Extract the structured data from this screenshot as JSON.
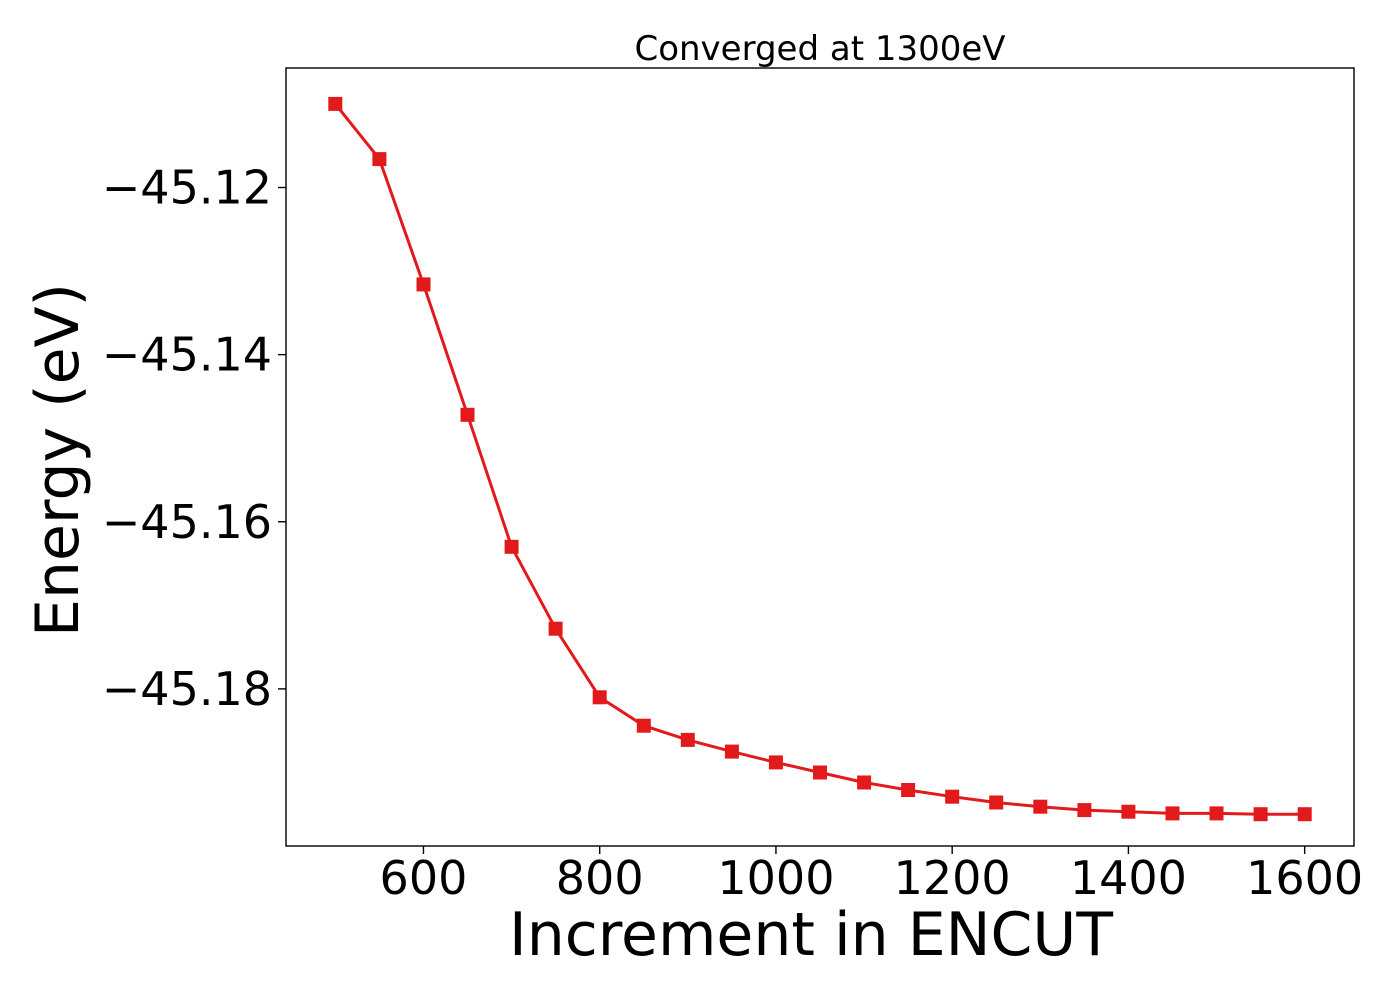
{
  "chart_data": {
    "type": "line",
    "title": "Converged at 1300eV",
    "xlabel": "Increment in ENCUT",
    "ylabel": "Energy (eV)",
    "xlim": [
      444,
      1656
    ],
    "ylim": [
      -45.1988,
      -45.1057
    ],
    "xticks": [
      600,
      800,
      1000,
      1200,
      1400,
      1600
    ],
    "yticks": [
      -45.12,
      -45.14,
      -45.16,
      -45.18
    ],
    "ytick_labels": [
      "−45.12",
      "−45.14",
      "−45.16",
      "−45.18"
    ],
    "grid": false,
    "series": [
      {
        "color": "#e31a1c",
        "marker": "square",
        "x": [
          500,
          550,
          600,
          650,
          700,
          750,
          800,
          850,
          900,
          950,
          1000,
          1050,
          1100,
          1150,
          1200,
          1250,
          1300,
          1350,
          1400,
          1450,
          1500,
          1550,
          1600
        ],
        "y": [
          -45.11,
          -45.1166,
          -45.1316,
          -45.1472,
          -45.163,
          -45.1728,
          -45.181,
          -45.1844,
          -45.1861,
          -45.1875,
          -45.1888,
          -45.19,
          -45.1912,
          -45.1921,
          -45.1929,
          -45.1936,
          -45.1941,
          -45.1945,
          -45.1947,
          -45.1949,
          -45.1949,
          -45.195,
          -45.195
        ]
      }
    ]
  }
}
